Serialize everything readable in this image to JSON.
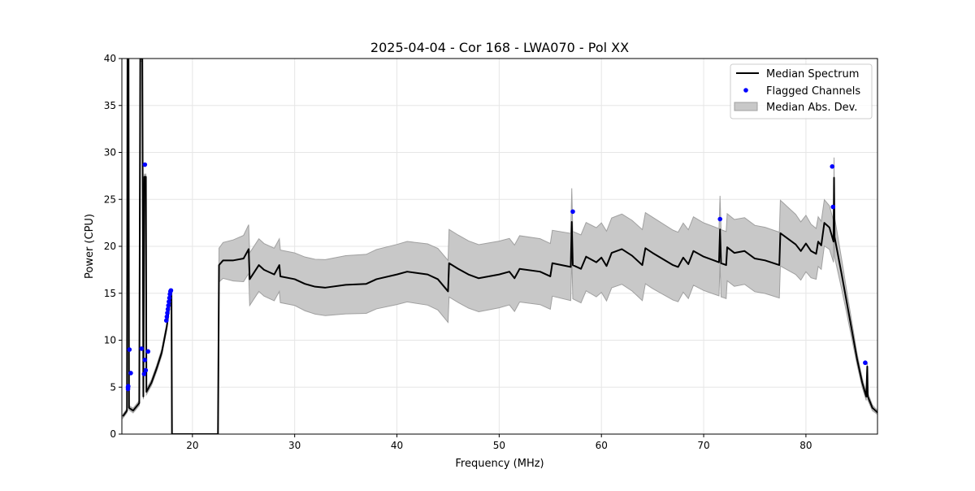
{
  "chart_data": {
    "type": "line",
    "title": "2025-04-04 - Cor 168 - LWA070 - Pol XX",
    "xlabel": "Frequency (MHz)",
    "ylabel": "Power (CPU)",
    "xlim": [
      13.1,
      87.0
    ],
    "ylim": [
      0,
      40
    ],
    "xticks": [
      20,
      30,
      40,
      50,
      60,
      70,
      80
    ],
    "yticks": [
      0,
      5,
      10,
      15,
      20,
      25,
      30,
      35,
      40
    ],
    "grid": true,
    "legend_position": "top-right",
    "legend": [
      "Median Spectrum",
      "Flagged Channels",
      "Median Abs. Dev."
    ],
    "colors": {
      "median": "#000000",
      "flagged": "#0000ff",
      "mad": "#c8c8c8",
      "mad_edge": "#a0a0a0"
    },
    "median": [
      [
        13.2,
        1.9
      ],
      [
        13.6,
        2.5
      ],
      [
        13.65,
        40
      ],
      [
        13.75,
        40
      ],
      [
        13.8,
        2.8
      ],
      [
        14.2,
        2.5
      ],
      [
        14.8,
        3.3
      ],
      [
        14.9,
        40
      ],
      [
        15.1,
        40
      ],
      [
        15.2,
        4
      ],
      [
        15.3,
        27.4
      ],
      [
        15.45,
        27.4
      ],
      [
        15.5,
        4.5
      ],
      [
        16,
        5.5
      ],
      [
        16.5,
        7
      ],
      [
        17,
        8.7
      ],
      [
        17.5,
        11.5
      ],
      [
        17.9,
        15
      ],
      [
        17.95,
        15
      ],
      [
        18,
        0
      ],
      [
        22.5,
        0
      ],
      [
        22.6,
        18
      ],
      [
        23,
        18.5
      ],
      [
        24,
        18.5
      ],
      [
        25,
        18.7
      ],
      [
        25.5,
        19.7
      ],
      [
        25.6,
        16.5
      ],
      [
        26.5,
        18
      ],
      [
        27,
        17.5
      ],
      [
        28,
        17
      ],
      [
        28.5,
        18
      ],
      [
        28.6,
        16.8
      ],
      [
        30,
        16.5
      ],
      [
        31,
        16
      ],
      [
        32,
        15.7
      ],
      [
        33,
        15.6
      ],
      [
        35,
        15.9
      ],
      [
        37,
        16.0
      ],
      [
        38,
        16.5
      ],
      [
        40,
        17
      ],
      [
        41,
        17.3
      ],
      [
        43,
        17
      ],
      [
        44,
        16.5
      ],
      [
        45,
        15.2
      ],
      [
        45.1,
        18.2
      ],
      [
        46,
        17.6
      ],
      [
        47,
        17.0
      ],
      [
        48,
        16.6
      ],
      [
        50,
        17.0
      ],
      [
        51,
        17.3
      ],
      [
        51.5,
        16.6
      ],
      [
        52,
        17.6
      ],
      [
        54,
        17.3
      ],
      [
        55,
        16.8
      ],
      [
        55.2,
        18.2
      ],
      [
        57,
        17.8
      ],
      [
        57.1,
        22.6
      ],
      [
        57.2,
        18
      ],
      [
        58,
        17.6
      ],
      [
        58.5,
        18.9
      ],
      [
        59.5,
        18.3
      ],
      [
        60,
        18.8
      ],
      [
        60.5,
        17.9
      ],
      [
        61,
        19.3
      ],
      [
        62,
        19.7
      ],
      [
        63,
        19
      ],
      [
        64,
        18
      ],
      [
        64.3,
        19.8
      ],
      [
        65,
        19.3
      ],
      [
        67,
        18.0
      ],
      [
        67.5,
        17.8
      ],
      [
        68,
        18.8
      ],
      [
        68.5,
        18.1
      ],
      [
        69,
        19.5
      ],
      [
        70,
        18.9
      ],
      [
        71,
        18.5
      ],
      [
        71.5,
        18.3
      ],
      [
        71.6,
        21.8
      ],
      [
        71.7,
        18.2
      ],
      [
        72.2,
        18
      ],
      [
        72.3,
        19.9
      ],
      [
        73,
        19.3
      ],
      [
        74,
        19.5
      ],
      [
        75,
        18.7
      ],
      [
        76,
        18.5
      ],
      [
        77.4,
        18
      ],
      [
        77.5,
        21.4
      ],
      [
        78,
        21
      ],
      [
        79,
        20.2
      ],
      [
        79.5,
        19.5
      ],
      [
        80,
        20.3
      ],
      [
        80.5,
        19.5
      ],
      [
        81,
        19.2
      ],
      [
        81.2,
        20.5
      ],
      [
        81.5,
        20.1
      ],
      [
        81.8,
        22.5
      ],
      [
        82.3,
        22
      ],
      [
        82.7,
        20.5
      ],
      [
        82.75,
        27.3
      ],
      [
        82.8,
        21
      ],
      [
        83.5,
        17
      ],
      [
        84,
        14
      ],
      [
        84.5,
        11
      ],
      [
        85,
        8
      ],
      [
        85.5,
        5.5
      ],
      [
        85.9,
        4
      ],
      [
        86,
        7.2
      ],
      [
        86.05,
        4
      ],
      [
        86.5,
        2.8
      ],
      [
        87,
        2.3
      ]
    ],
    "mad_halfwidth": [
      [
        13.2,
        0.2
      ],
      [
        17.95,
        0.4
      ],
      [
        18,
        0
      ],
      [
        22.5,
        0
      ],
      [
        22.6,
        1.8
      ],
      [
        25.5,
        2.6
      ],
      [
        25.6,
        2.8
      ],
      [
        30,
        2.8
      ],
      [
        35,
        3.1
      ],
      [
        40,
        3.2
      ],
      [
        45,
        3.3
      ],
      [
        45.1,
        3.6
      ],
      [
        55,
        3.5
      ],
      [
        60,
        3.7
      ],
      [
        65,
        3.8
      ],
      [
        70,
        3.6
      ],
      [
        77.5,
        3.5
      ],
      [
        80,
        3.0
      ],
      [
        82.7,
        2.2
      ],
      [
        84,
        1.2
      ],
      [
        85,
        0.6
      ],
      [
        87,
        0.2
      ]
    ],
    "flagged": [
      [
        13.7,
        4.8
      ],
      [
        13.7,
        5.0
      ],
      [
        13.72,
        5.1
      ],
      [
        13.84,
        9.0
      ],
      [
        13.97,
        6.5
      ],
      [
        15.03,
        9.1
      ],
      [
        15.27,
        6.4
      ],
      [
        15.35,
        28.7
      ],
      [
        15.35,
        7.9
      ],
      [
        15.43,
        6.8
      ],
      [
        15.66,
        8.8
      ],
      [
        17.45,
        12.1
      ],
      [
        17.5,
        12.5
      ],
      [
        17.55,
        12.9
      ],
      [
        17.6,
        13.3
      ],
      [
        17.65,
        13.7
      ],
      [
        17.7,
        14.1
      ],
      [
        17.75,
        14.5
      ],
      [
        17.8,
        14.9
      ],
      [
        17.85,
        15.2
      ],
      [
        17.9,
        15.3
      ],
      [
        57.2,
        23.7
      ],
      [
        71.6,
        22.9
      ],
      [
        82.57,
        28.5
      ],
      [
        82.65,
        24.2
      ],
      [
        85.8,
        7.6
      ]
    ]
  }
}
